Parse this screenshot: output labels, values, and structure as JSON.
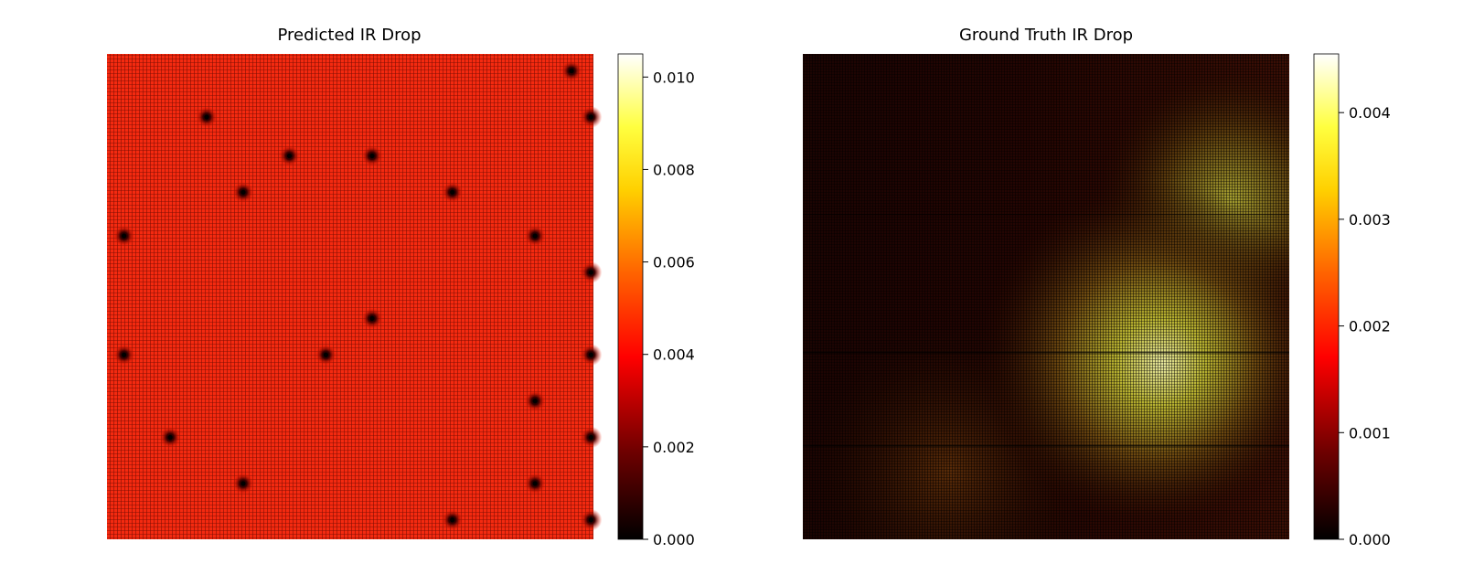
{
  "chart_data": [
    {
      "type": "heatmap",
      "title": "Predicted IR Drop",
      "colormap": "hot",
      "colorbar_range": [
        0.0,
        0.0105
      ],
      "colorbar_ticks": [
        "0.000",
        "0.002",
        "0.004",
        "0.006",
        "0.008",
        "0.010"
      ],
      "colorbar_tick_values": [
        0.0,
        0.002,
        0.004,
        0.006,
        0.008,
        0.01
      ],
      "axes_visible": false,
      "description_values": {
        "background_level": 0.0042,
        "grid_line_level": 0.0008,
        "hotspot_level": 0.0
      },
      "hotspots": [
        {
          "col": 0.955,
          "row": 0.035
        },
        {
          "col": 0.205,
          "row": 0.13
        },
        {
          "col": 0.375,
          "row": 0.21
        },
        {
          "col": 0.545,
          "row": 0.21
        },
        {
          "col": 0.28,
          "row": 0.285
        },
        {
          "col": 0.71,
          "row": 0.285
        },
        {
          "col": 0.035,
          "row": 0.375
        },
        {
          "col": 0.88,
          "row": 0.375
        },
        {
          "col": 0.545,
          "row": 0.545
        },
        {
          "col": 0.035,
          "row": 0.62
        },
        {
          "col": 0.45,
          "row": 0.62
        },
        {
          "col": 0.88,
          "row": 0.715
        },
        {
          "col": 0.13,
          "row": 0.79
        },
        {
          "col": 0.28,
          "row": 0.885
        },
        {
          "col": 0.88,
          "row": 0.885
        },
        {
          "col": 0.71,
          "row": 0.96
        },
        {
          "col": 0.995,
          "row": 0.13
        },
        {
          "col": 0.995,
          "row": 0.45
        },
        {
          "col": 0.995,
          "row": 0.62
        },
        {
          "col": 0.995,
          "row": 0.79
        },
        {
          "col": 0.995,
          "row": 0.96
        }
      ]
    },
    {
      "type": "heatmap",
      "title": "Ground Truth IR Drop",
      "colormap": "hot",
      "colorbar_range": [
        0.0,
        0.00455
      ],
      "colorbar_ticks": [
        "0.000",
        "0.001",
        "0.002",
        "0.003",
        "0.004"
      ],
      "colorbar_tick_values": [
        0.0,
        0.001,
        0.002,
        0.003,
        0.004
      ],
      "axes_visible": false,
      "description_values": {
        "low_region_level": 0.0002,
        "mid_region_level": 0.0011,
        "peak_level": 0.0045,
        "peak_location_col": 0.72,
        "peak_location_row": 0.62
      }
    }
  ],
  "colors": {
    "colormap_stops": [
      "#000000",
      "#8a0000",
      "#ff0000",
      "#ff6a00",
      "#ffd200",
      "#ffff60",
      "#ffffff"
    ]
  }
}
